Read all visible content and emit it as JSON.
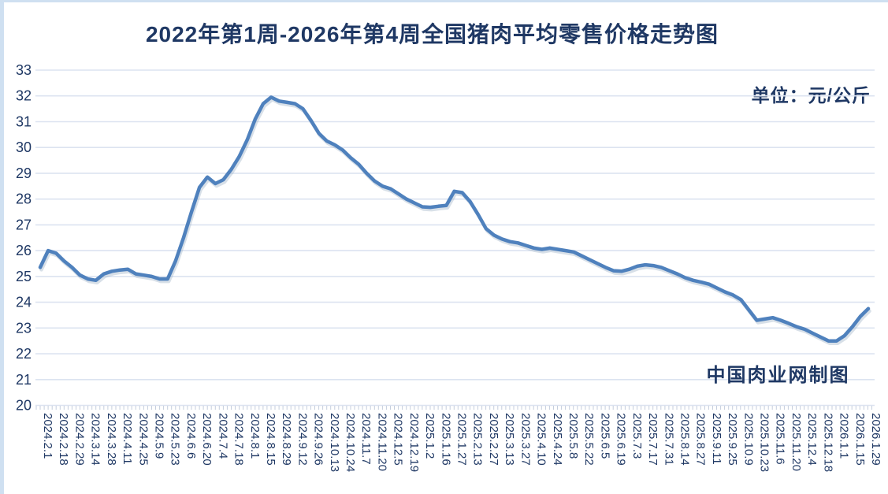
{
  "page": {
    "title": "2022年第1周-2026年第4周全国猪肉平均零售价格走势图",
    "unit_label": "单位：元/公斤",
    "watermark": "中国肉业网制图"
  },
  "colors": {
    "text_navy": "#1f3864",
    "line": "#4f81bd",
    "line_shadow": "#8fa5bd",
    "gridline": "#dce3f0",
    "tick": "#c5cedd",
    "border_accent": "#cfe0f1"
  },
  "chart_data": {
    "type": "line",
    "title": "2022年第1周-2026年第4周全国猪肉平均零售价格走势图",
    "unit": "元/公斤",
    "xlabel": "",
    "ylabel": "",
    "legend": "none",
    "grid": "horizontal",
    "y_axis": {
      "min": 20,
      "max": 33,
      "tick_step": 1,
      "ticks": [
        33,
        32,
        31,
        30,
        29,
        28,
        27,
        26,
        25,
        24,
        23,
        22,
        21,
        20
      ]
    },
    "x_labels": [
      "2024.2.1",
      "2024.2.18",
      "2024.2.29",
      "2024.3.14",
      "2024.3.28",
      "2024.4.11",
      "2024.4.25",
      "2024.5.9",
      "2024.5.23",
      "2024.6.6",
      "2024.6.20",
      "2024.7.4",
      "2024.7.18",
      "2024.8.1",
      "2024.8.15",
      "2024.8.29",
      "2024.9.12",
      "2024.9.26",
      "2024.10.13",
      "2024.10.24",
      "2024.11.7",
      "2024.11.20",
      "2024.12.5",
      "2024.12.19",
      "2025.1.2",
      "2025.1.16",
      "2025.1.27",
      "2025.2.13",
      "2025.2.27",
      "2025.3.13",
      "2025.3.27",
      "2025.4.10",
      "2025.4.24",
      "2025.5.8",
      "2025.5.22",
      "2025.6.5",
      "2025.6.19",
      "2025.7.3",
      "2025.7.17",
      "2025.7.31",
      "2025.8.14",
      "2025.8.27",
      "2025.9.11",
      "2025.9.25",
      "2025.10.9",
      "2025.10.23",
      "2025.11.6",
      "2025.11.20",
      "2025.12.4",
      "2025.12.18",
      "2026.1.1",
      "2026.1.15",
      "2026.1.29"
    ],
    "x_label_every_n_points": 2,
    "series": [
      {
        "name": "全国猪肉平均零售价格",
        "values": [
          25.35,
          26.0,
          25.9,
          25.6,
          25.35,
          25.05,
          24.9,
          24.85,
          25.1,
          25.2,
          25.25,
          25.28,
          25.1,
          25.05,
          25.0,
          24.9,
          24.9,
          25.6,
          26.5,
          27.5,
          28.45,
          28.85,
          28.6,
          28.75,
          29.15,
          29.65,
          30.3,
          31.1,
          31.7,
          31.95,
          31.8,
          31.75,
          31.7,
          31.5,
          31.05,
          30.55,
          30.25,
          30.1,
          29.9,
          29.6,
          29.35,
          29.0,
          28.7,
          28.5,
          28.4,
          28.2,
          28.0,
          27.85,
          27.7,
          27.68,
          27.72,
          27.75,
          28.3,
          28.25,
          27.9,
          27.4,
          26.85,
          26.6,
          26.45,
          26.35,
          26.3,
          26.2,
          26.1,
          26.05,
          26.1,
          26.05,
          26.0,
          25.95,
          25.8,
          25.65,
          25.5,
          25.35,
          25.22,
          25.2,
          25.28,
          25.4,
          25.45,
          25.42,
          25.35,
          25.22,
          25.1,
          24.95,
          24.85,
          24.78,
          24.7,
          24.55,
          24.4,
          24.28,
          24.1,
          23.7,
          23.3,
          23.35,
          23.4,
          23.3,
          23.18,
          23.05,
          22.95,
          22.8,
          22.65,
          22.5,
          22.5,
          22.7,
          23.05,
          23.45,
          23.75
        ]
      }
    ]
  }
}
